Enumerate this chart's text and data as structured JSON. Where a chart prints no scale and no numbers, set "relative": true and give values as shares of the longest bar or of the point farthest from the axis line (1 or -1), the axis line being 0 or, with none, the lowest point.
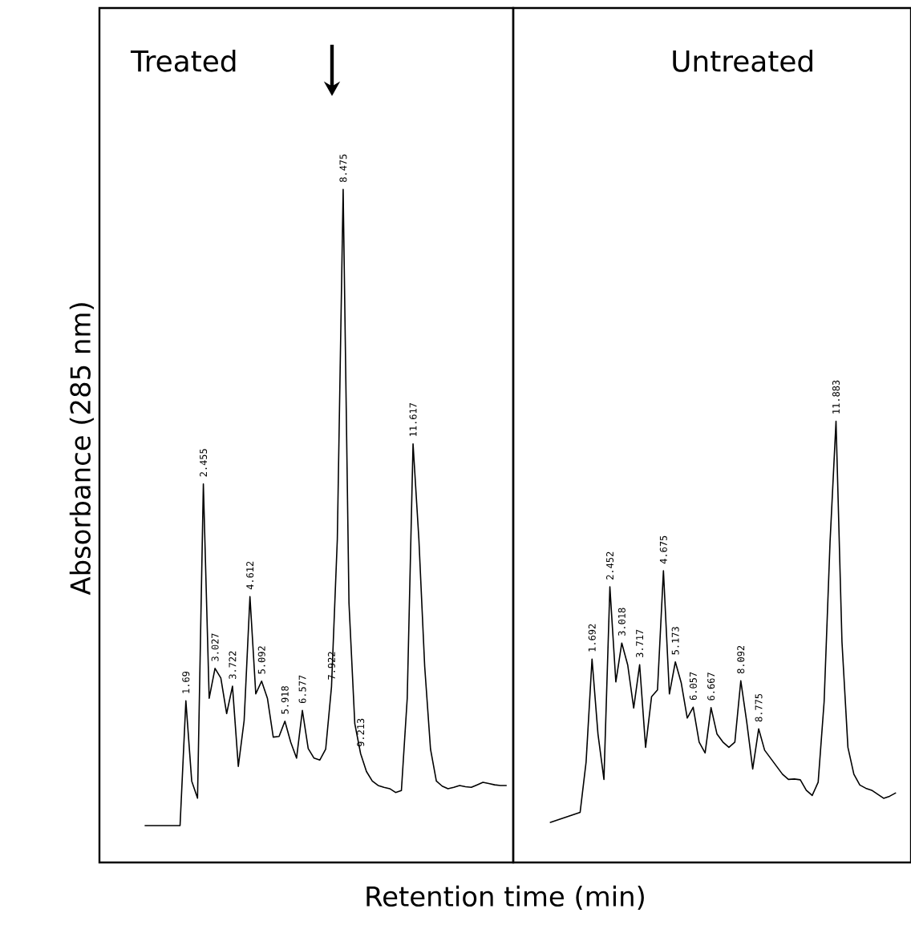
{
  "chart_data": [
    {
      "type": "line",
      "title": "Treated",
      "xlabel": "Retention time (min)",
      "ylabel": "Absorbance (285 nm)",
      "relative": true,
      "categories": [
        null,
        null,
        null,
        null,
        null,
        null,
        null,
        null,
        null,
        null,
        null,
        null,
        null,
        null,
        null,
        null,
        null,
        null,
        null,
        null,
        null,
        null,
        null,
        null,
        null,
        null,
        null,
        null,
        null,
        null,
        null,
        null,
        null,
        null,
        null,
        null,
        null,
        null,
        null,
        null,
        null,
        null,
        null,
        null,
        null,
        null,
        null,
        null,
        null,
        null,
        null,
        null,
        null,
        null,
        null,
        null,
        null,
        null,
        null,
        null,
        null,
        null,
        null
      ],
      "series": [
        {
          "color": "#000000",
          "values": [
            0,
            0,
            0,
            0,
            0,
            0,
            0,
            0.196,
            0.07,
            0.043,
            0.537,
            0.2,
            0.247,
            0.232,
            0.176,
            0.219,
            0.093,
            0.165,
            0.36,
            0.207,
            0.227,
            0.2,
            0.139,
            0.14,
            0.164,
            0.131,
            0.106,
            0.181,
            0.121,
            0.106,
            0.103,
            0.12,
            0.218,
            0.45,
            1.0,
            0.35,
            0.16,
            0.113,
            0.085,
            0.07,
            0.063,
            0.06,
            0.058,
            0.052,
            0.055,
            0.2,
            0.6,
            0.45,
            0.25,
            0.12,
            0.07,
            0.062,
            0.058,
            0.06,
            0.063,
            0.061,
            0.06,
            0.064,
            0.068,
            0.066,
            0.064,
            0.063,
            0.063
          ]
        }
      ],
      "annotations": [
        {
          "text": "1.69",
          "y": 0.196
        },
        {
          "text": "2.455",
          "y": 0.537
        },
        {
          "text": "3.027",
          "y": 0.247
        },
        {
          "text": "3.722",
          "y": 0.219
        },
        {
          "text": "4.612",
          "y": 0.36
        },
        {
          "text": "5.092",
          "y": 0.227
        },
        {
          "text": "5.918",
          "y": 0.164
        },
        {
          "text": "6.577",
          "y": 0.181
        },
        {
          "text": "7.922",
          "y": 0.218
        },
        {
          "text": "8.475",
          "y": 1.0
        },
        {
          "text": "9.213",
          "y": 0.113
        },
        {
          "text": "11.617",
          "y": 0.6
        }
      ]
    },
    {
      "type": "line",
      "title": "Untreated",
      "relative": true,
      "categories": [
        null,
        null,
        null,
        null,
        null,
        null,
        null,
        null,
        null,
        null,
        null,
        null,
        null,
        null,
        null,
        null,
        null,
        null,
        null,
        null,
        null,
        null,
        null,
        null,
        null,
        null,
        null,
        null,
        null,
        null,
        null,
        null,
        null,
        null,
        null,
        null,
        null,
        null,
        null,
        null,
        null,
        null,
        null,
        null,
        null,
        null,
        null,
        null,
        null,
        null,
        null,
        null,
        null,
        null,
        null,
        null,
        null,
        null,
        null
      ],
      "series": [
        {
          "color": "#000000",
          "values": [
            0,
            0.005,
            0.01,
            0.015,
            0.02,
            0.025,
            0.15,
            0.407,
            0.22,
            0.107,
            0.587,
            0.35,
            0.447,
            0.392,
            0.285,
            0.393,
            0.187,
            0.313,
            0.33,
            0.627,
            0.32,
            0.4,
            0.347,
            0.26,
            0.287,
            0.2,
            0.173,
            0.286,
            0.22,
            0.2,
            0.187,
            0.2,
            0.353,
            0.25,
            0.133,
            0.233,
            0.18,
            0.16,
            0.14,
            0.12,
            0.107,
            0.108,
            0.106,
            0.08,
            0.067,
            0.1,
            0.3,
            0.7,
            1.0,
            0.45,
            0.187,
            0.12,
            0.093,
            0.085,
            0.08,
            0.07,
            0.06,
            0.065,
            0.073
          ]
        }
      ],
      "annotations": [
        {
          "text": "1.692",
          "y": 0.407
        },
        {
          "text": "2.452",
          "y": 0.587
        },
        {
          "text": "3.018",
          "y": 0.447
        },
        {
          "text": "3.717",
          "y": 0.393
        },
        {
          "text": "4.675",
          "y": 0.627
        },
        {
          "text": "5.173",
          "y": 0.4
        },
        {
          "text": "6.057",
          "y": 0.287
        },
        {
          "text": "6.667",
          "y": 0.286
        },
        {
          "text": "8.092",
          "y": 0.353
        },
        {
          "text": "8.775",
          "y": 0.233
        },
        {
          "text": "11.883",
          "y": 1.0
        }
      ]
    }
  ]
}
